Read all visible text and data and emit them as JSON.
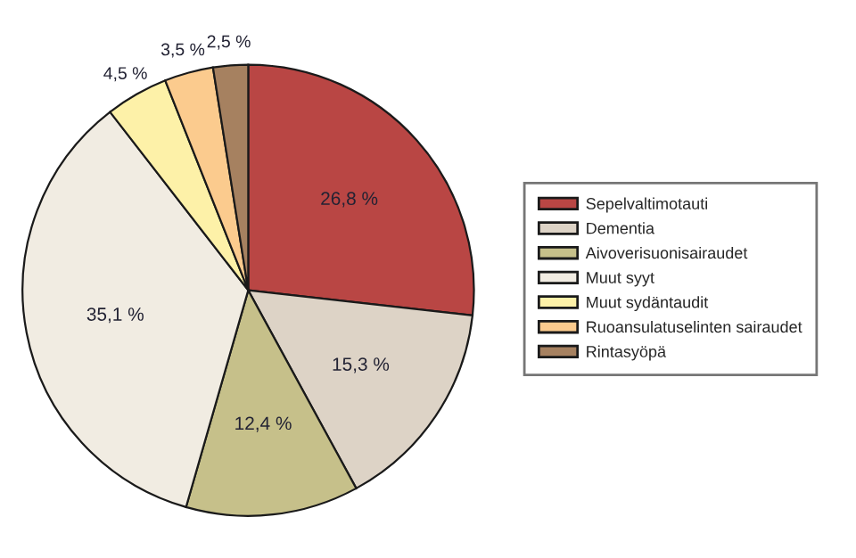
{
  "chart_data": {
    "type": "pie",
    "categories": [
      "Sepelvaltimotauti",
      "Dementia",
      "Aivoverisuonisairaudet",
      "Muut syyt",
      "Muut sydäntaudit",
      "Ruoansulatuselinten sairaudet",
      "Rintasyöpä"
    ],
    "values": [
      26.8,
      15.3,
      12.4,
      35.1,
      4.5,
      3.5,
      2.5
    ],
    "value_labels": [
      "26,8 %",
      "15,3 %",
      "12,4 %",
      "35,1 %",
      "4,5 %",
      "3,5 %",
      "2,5 %"
    ],
    "colors": [
      "#b94644",
      "#ddd3c6",
      "#c6c08a",
      "#f1ece2",
      "#fdf1a8",
      "#fbcb8e",
      "#a68160"
    ],
    "legend": "right"
  }
}
